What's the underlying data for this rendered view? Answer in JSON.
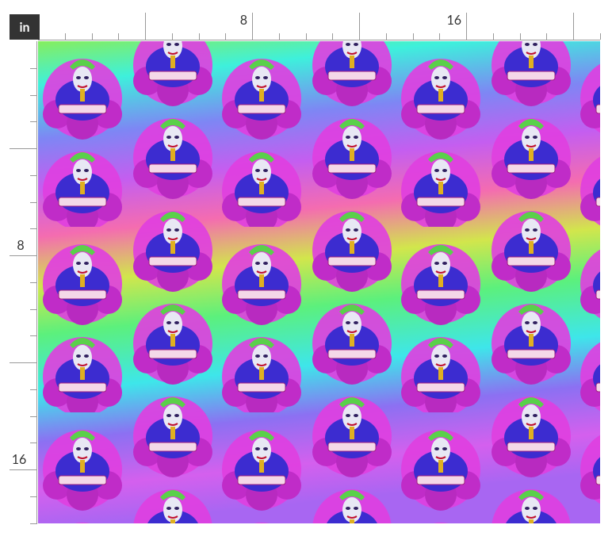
{
  "unit": "in",
  "top_ruler": {
    "labels": [
      "8",
      "16"
    ]
  },
  "left_ruler": {
    "labels": [
      "8",
      "16"
    ]
  }
}
